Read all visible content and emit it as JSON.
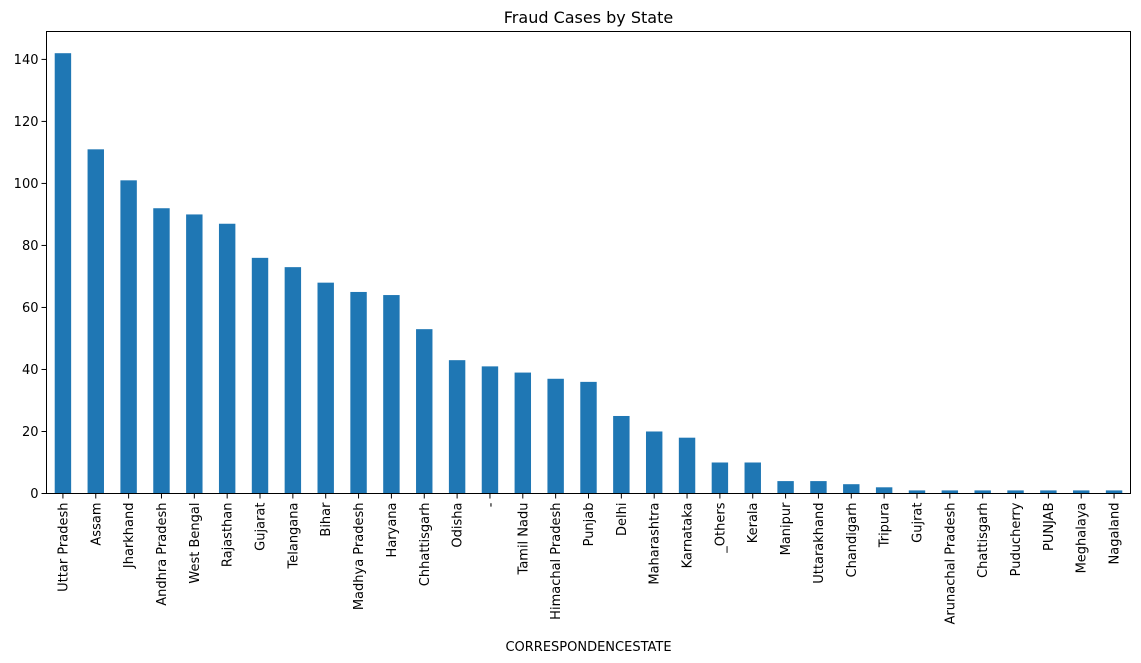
{
  "chart_data": {
    "type": "bar",
    "title": "Fraud Cases by State",
    "xlabel": "CORRESPONDENCESTATE",
    "ylabel": "",
    "ylim": [
      0,
      149
    ],
    "yticks": [
      0,
      20,
      40,
      60,
      80,
      100,
      120,
      140
    ],
    "bar_color": "#1f77b4",
    "grid": false,
    "legend": "none",
    "categories": [
      "Uttar Pradesh",
      "Assam",
      "Jharkhand",
      "Andhra Pradesh",
      "West Bengal",
      "Rajasthan",
      "Gujarat",
      "Telangana",
      "Bihar",
      "Madhya Pradesh",
      "Haryana",
      "Chhattisgarh",
      "Odisha",
      "-",
      "Tamil Nadu",
      "Himachal Pradesh",
      "Punjab",
      "Delhi",
      "Maharashtra",
      "Karnataka",
      "_Others",
      "Kerala",
      "Manipur",
      "Uttarakhand",
      "Chandigarh",
      "Tripura",
      "Gujrat",
      "Arunachal Pradesh",
      "Chattisgarh",
      "Puducherry",
      "PUNJAB",
      "Meghalaya",
      "Nagaland"
    ],
    "values": [
      142,
      111,
      101,
      92,
      90,
      87,
      76,
      73,
      68,
      65,
      64,
      53,
      43,
      41,
      39,
      37,
      36,
      25,
      20,
      18,
      10,
      10,
      4,
      4,
      3,
      2,
      1,
      1,
      1,
      1,
      1,
      1,
      1
    ]
  }
}
